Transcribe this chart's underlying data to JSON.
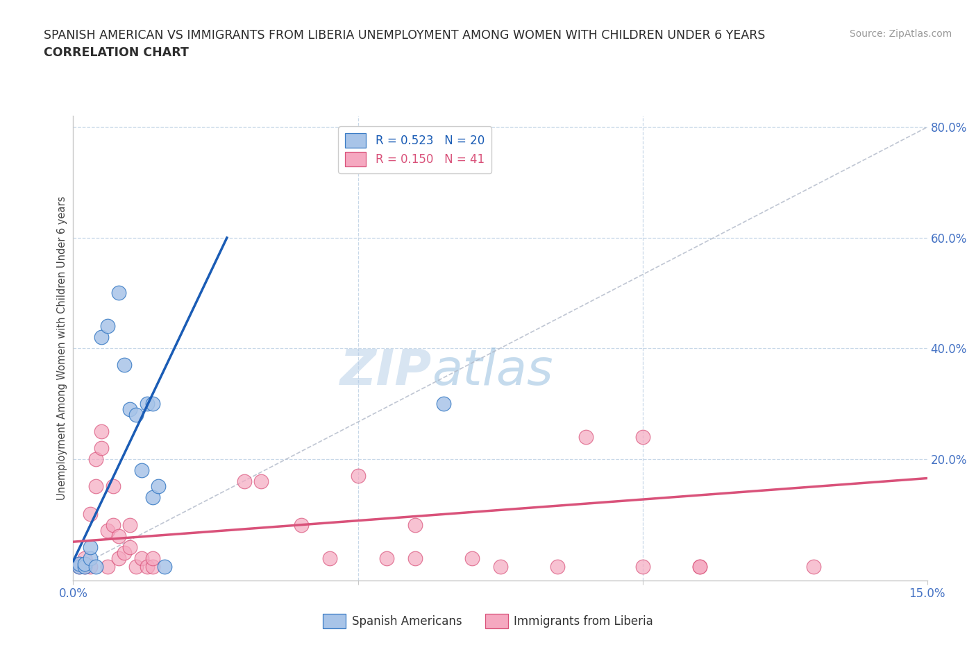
{
  "title_line1": "SPANISH AMERICAN VS IMMIGRANTS FROM LIBERIA UNEMPLOYMENT AMONG WOMEN WITH CHILDREN UNDER 6 YEARS",
  "title_line2": "CORRELATION CHART",
  "source": "Source: ZipAtlas.com",
  "ylabel": "Unemployment Among Women with Children Under 6 years",
  "xlim": [
    0.0,
    0.15
  ],
  "ylim": [
    -0.02,
    0.82
  ],
  "watermark_zip": "ZIP",
  "watermark_atlas": "atlas",
  "legend_entry_blue": "R = 0.523   N = 20",
  "legend_entry_pink": "R = 0.150   N = 41",
  "blue_scatter": [
    [
      0.001,
      0.005
    ],
    [
      0.001,
      0.01
    ],
    [
      0.002,
      0.005
    ],
    [
      0.002,
      0.01
    ],
    [
      0.003,
      0.02
    ],
    [
      0.003,
      0.04
    ],
    [
      0.004,
      0.005
    ],
    [
      0.005,
      0.42
    ],
    [
      0.006,
      0.44
    ],
    [
      0.008,
      0.5
    ],
    [
      0.009,
      0.37
    ],
    [
      0.01,
      0.29
    ],
    [
      0.011,
      0.28
    ],
    [
      0.012,
      0.18
    ],
    [
      0.013,
      0.3
    ],
    [
      0.014,
      0.3
    ],
    [
      0.014,
      0.13
    ],
    [
      0.015,
      0.15
    ],
    [
      0.016,
      0.005
    ],
    [
      0.065,
      0.3
    ]
  ],
  "pink_scatter": [
    [
      0.001,
      0.005
    ],
    [
      0.001,
      0.01
    ],
    [
      0.002,
      0.02
    ],
    [
      0.002,
      0.005
    ],
    [
      0.003,
      0.005
    ],
    [
      0.003,
      0.1
    ],
    [
      0.004,
      0.15
    ],
    [
      0.004,
      0.2
    ],
    [
      0.005,
      0.22
    ],
    [
      0.005,
      0.25
    ],
    [
      0.006,
      0.005
    ],
    [
      0.006,
      0.07
    ],
    [
      0.007,
      0.08
    ],
    [
      0.007,
      0.15
    ],
    [
      0.008,
      0.02
    ],
    [
      0.008,
      0.06
    ],
    [
      0.009,
      0.03
    ],
    [
      0.01,
      0.04
    ],
    [
      0.01,
      0.08
    ],
    [
      0.011,
      0.005
    ],
    [
      0.012,
      0.02
    ],
    [
      0.013,
      0.005
    ],
    [
      0.014,
      0.005
    ],
    [
      0.014,
      0.02
    ],
    [
      0.03,
      0.16
    ],
    [
      0.033,
      0.16
    ],
    [
      0.04,
      0.08
    ],
    [
      0.045,
      0.02
    ],
    [
      0.05,
      0.17
    ],
    [
      0.055,
      0.02
    ],
    [
      0.06,
      0.02
    ],
    [
      0.06,
      0.08
    ],
    [
      0.07,
      0.02
    ],
    [
      0.075,
      0.005
    ],
    [
      0.085,
      0.005
    ],
    [
      0.09,
      0.24
    ],
    [
      0.1,
      0.24
    ],
    [
      0.1,
      0.005
    ],
    [
      0.11,
      0.005
    ],
    [
      0.11,
      0.005
    ],
    [
      0.13,
      0.005
    ]
  ],
  "blue_line": [
    [
      0.0,
      0.015
    ],
    [
      0.027,
      0.6
    ]
  ],
  "pink_line": [
    [
      0.0,
      0.05
    ],
    [
      0.15,
      0.165
    ]
  ],
  "diag_line": [
    [
      0.0,
      0.0
    ],
    [
      0.15,
      0.8
    ]
  ],
  "blue_line_color": "#1a5cb5",
  "pink_line_color": "#d9527a",
  "scatter_blue_face": "#a8c4e8",
  "scatter_blue_edge": "#3a7cc5",
  "scatter_pink_face": "#f5a8c0",
  "scatter_pink_edge": "#d9527a",
  "diag_line_color": "#b0b8c8",
  "title_color": "#2d2d2d",
  "axis_label_color": "#4472c4",
  "grid_color": "#c8d8e8",
  "background_color": "#ffffff",
  "legend_border_color": "#cccccc",
  "bottom_legend_label_blue": "Spanish Americans",
  "bottom_legend_label_pink": "Immigrants from Liberia"
}
